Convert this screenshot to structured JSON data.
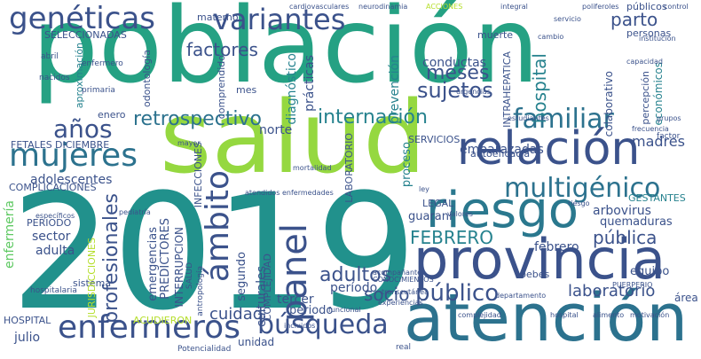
{
  "words": {
    "poblacion": "población",
    "salud": "salud",
    "anio": "2019",
    "atencion": "atención",
    "provincia": "provincia",
    "riesgo": "riesgo",
    "relacion": "relación",
    "geneticas": "genéticas",
    "variantes": "variantes",
    "mujeres": "mujeres",
    "enfermeros": "enfermeros",
    "busqueda": "búsqueda",
    "ambito": "ámbito",
    "panel": "panel",
    "multigenico": "multigénico",
    "familiar": "familiar",
    "publico": "público",
    "retrospectivo": "retrospectivo",
    "anios": "años",
    "factores": "factores",
    "meses": "meses",
    "sujetos": "sujetos",
    "internacion": "internación",
    "cuidad": "cuidad",
    "adultos": "adultos",
    "socio": "socio",
    "profesionales": "profesionales",
    "hospital": "hospital",
    "parto": "parto",
    "publica": "pública",
    "febrero_up": "FEBRERO",
    "laboratorio": "laboratorio",
    "diagnostico": "diagnóstico",
    "conductas": "conductas",
    "practicas": "prácticas",
    "prevencion": "prevención",
    "madres": "madres",
    "embarazadas": "embarazadas",
    "adolescentes": "adolescentes",
    "enfermeria": "enfermería",
    "emergencias": "emergencias",
    "predictores": "PREDICTORES",
    "interrupcion": "INTERRUPCION",
    "cultural": "culturales",
    "complejidad": "COMPLEJIDAD",
    "tercer": "tercer",
    "periodo": "período",
    "periodo2": "periodo",
    "segundo": "segundo",
    "norte": "norte",
    "sector": "sector",
    "adulta": "adulta",
    "julio": "julio",
    "cuidad2": "cuidad",
    "acudieron": "ACUDIERON",
    "hospital_up": "HOSPITAL",
    "sistema": "sistema",
    "jurisdicciones": "JURISDICCIONES",
    "guarani": "guaraní",
    "legal": "LEGAL",
    "gestantes": "GESTANTES",
    "arbovirus": "arbovirus",
    "quemaduras": "quemaduras",
    "bebes": "bebés",
    "febrero": "febrero",
    "equipo": "equipo",
    "area": "área",
    "unidad": "unidad",
    "economicos": "económicos",
    "colaborativo": "colaborativo",
    "percepcion": "percepción",
    "intrahepatica": "INTRAHEPATICA",
    "autoeficacia": "autoeficacia",
    "servicios": "SERVICIOS",
    "proceso": "proceso",
    "infecciones": "INFECCIONES",
    "laboratorio_up": "LABORATORIO",
    "fetales": "FETALES",
    "diciembre": "DICIEMBRE",
    "enero": "enero",
    "complicaciones": "COMPLICACIONES",
    "periodo_up": "PERIODO",
    "materno": "materno",
    "muerte": "muerte",
    "seleccionadas": "SELECCIONADAS",
    "aproximacion": "aproximación",
    "odontologia": "odontología",
    "mes": "mes",
    "comprendido": "comprendido",
    "publicos": "públicos",
    "personas": "personas",
    "factor": "factor",
    "riesgo_small": "riesgo",
    "salud_small": "SALUD",
    "antropologia": "antropología",
    "potencialidad": "Potencialidad",
    "real": "real",
    "pediatria": "pediatría",
    "nacidos": "nacidos",
    "abril": "abril",
    "enfermero": "enfermero",
    "primaria": "primaria",
    "cardiovasculares": "cardiovasculares",
    "neurodinamia": "neurodinamia",
    "acciones": "ACCIONES",
    "poliferoles": "poliferoles",
    "control": "control",
    "estudiantes": "estudiantes",
    "funcional": "funcional",
    "mortalidad": "mortalidad",
    "ley": "ley",
    "capacidad": "capacidad",
    "hospitalaria": "hospitalaria",
    "especificos": "específicos",
    "incluidos": "incluidos",
    "enfermedades": "enfermedades",
    "experiencias": "experiencias",
    "atendidos": "atendidos",
    "alimento": "alimento",
    "motivacion": "motivación",
    "complejidad_s": "complejidad",
    "hospital_s": "hospital",
    "departamento": "departamento",
    "puerperio": "PUERPERIO",
    "grupos": "grupos",
    "urgencias": "urgencias",
    "cambio": "cambio",
    "institucion": "institución",
    "frecuencia": "frecuencia",
    "valores": "valores",
    "transcutanea": "transcutánea",
    "acompanantes": "acompañantes",
    "conocimientos": "CONOCIMIENTOS",
    "mayor": "mayor",
    "servicio": "servicio",
    "integral": "integral"
  },
  "palette": [
    "#440154",
    "#482878",
    "#3e4989",
    "#31688e",
    "#26828e",
    "#1f9e89",
    "#35b779",
    "#6ece58",
    "#b5de2b",
    "#fde725"
  ]
}
